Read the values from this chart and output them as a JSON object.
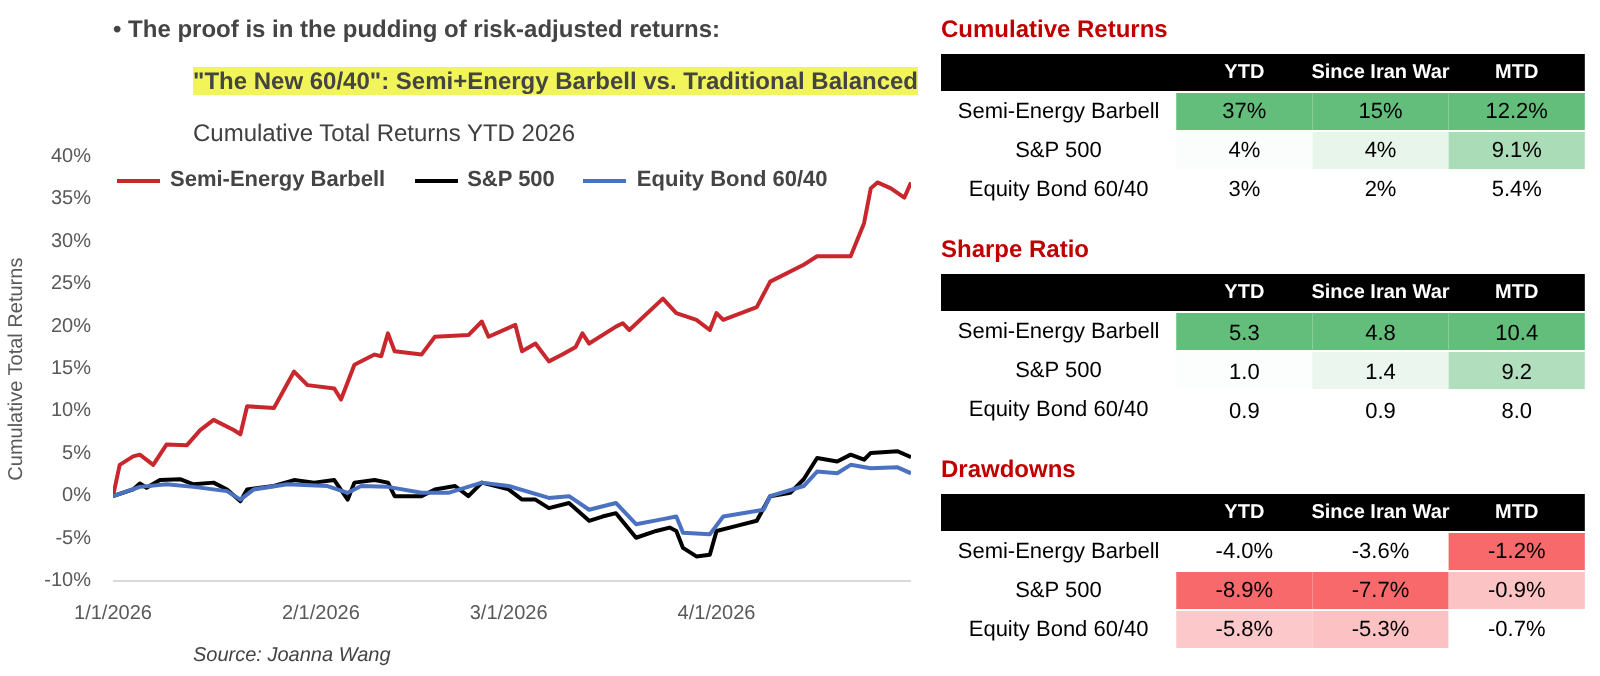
{
  "chart_data": [
    {
      "type": "line",
      "title": "\"The New 60/40\": Semi+Energy Barbell vs. Traditional Balanced",
      "subtitle": "Cumulative Total Returns YTD 2026",
      "ylabel": "Cumulative Total Returns",
      "annotations": [
        "• The proof is in the pudding of risk-adjusted returns:",
        "Source: Joanna Wang"
      ],
      "xlim": [
        "2026-01-01",
        "2026-04-30"
      ],
      "ylim": [
        -10,
        40
      ],
      "xticks": [
        {
          "value": "2026-01-01",
          "label": "1/1/2026"
        },
        {
          "value": "2026-02-01",
          "label": "2/1/2026"
        },
        {
          "value": "2026-03-01",
          "label": "3/1/2026"
        },
        {
          "value": "2026-04-01",
          "label": "4/1/2026"
        }
      ],
      "yticks": [
        {
          "value": -10,
          "label": "-10%"
        },
        {
          "value": -5,
          "label": "-5%"
        },
        {
          "value": 0,
          "label": "0%"
        },
        {
          "value": 5,
          "label": "5%"
        },
        {
          "value": 10,
          "label": "10%"
        },
        {
          "value": 15,
          "label": "15%"
        },
        {
          "value": 20,
          "label": "20%"
        },
        {
          "value": 25,
          "label": "25%"
        },
        {
          "value": 30,
          "label": "30%"
        },
        {
          "value": 35,
          "label": "35%"
        },
        {
          "value": 40,
          "label": "40%"
        }
      ],
      "grid": false,
      "legend": "top left",
      "line_style": "solid",
      "series": [
        {
          "name": "Semi-Energy Barbell",
          "color": "#c8282d",
          "x": [
            "2026-01-01",
            "2026-01-02",
            "2026-01-04",
            "2026-01-05",
            "2026-01-07",
            "2026-01-09",
            "2026-01-12",
            "2026-01-14",
            "2026-01-16",
            "2026-01-19",
            "2026-01-20",
            "2026-01-21",
            "2026-01-25",
            "2026-01-28",
            "2026-01-30",
            "2026-02-03",
            "2026-02-04",
            "2026-02-06",
            "2026-02-09",
            "2026-02-10",
            "2026-02-11",
            "2026-02-12",
            "2026-02-16",
            "2026-02-18",
            "2026-02-23",
            "2026-02-25",
            "2026-02-26",
            "2026-03-02",
            "2026-03-03",
            "2026-03-05",
            "2026-03-07",
            "2026-03-09",
            "2026-03-11",
            "2026-03-12",
            "2026-03-13",
            "2026-03-17",
            "2026-03-18",
            "2026-03-19",
            "2026-03-24",
            "2026-03-26",
            "2026-03-29",
            "2026-03-31",
            "2026-04-01",
            "2026-04-02",
            "2026-04-07",
            "2026-04-09",
            "2026-04-14",
            "2026-04-16",
            "2026-04-21",
            "2026-04-23",
            "2026-04-24",
            "2026-04-25",
            "2026-04-27",
            "2026-04-29",
            "2026-04-30"
          ],
          "values": [
            0,
            3.7,
            4.7,
            4.9,
            3.7,
            6.1,
            6.0,
            7.8,
            9.0,
            7.8,
            7.3,
            10.6,
            10.4,
            14.7,
            13.1,
            12.7,
            11.4,
            15.5,
            16.7,
            16.5,
            19.2,
            17.1,
            16.7,
            18.8,
            19.0,
            20.6,
            18.8,
            20.2,
            17.1,
            18.0,
            15.9,
            16.7,
            17.6,
            19.2,
            18.0,
            20.0,
            20.4,
            19.6,
            23.3,
            21.6,
            20.8,
            19.6,
            21.6,
            20.8,
            22.3,
            25.3,
            27.3,
            28.3,
            28.3,
            32.2,
            36.3,
            37.0,
            36.3,
            35.2,
            37.0
          ]
        },
        {
          "name": "S&P 500",
          "color": "#000000",
          "x": [
            "2026-01-01",
            "2026-01-04",
            "2026-01-05",
            "2026-01-06",
            "2026-01-08",
            "2026-01-11",
            "2026-01-13",
            "2026-01-16",
            "2026-01-18",
            "2026-01-20",
            "2026-01-21",
            "2026-01-25",
            "2026-01-28",
            "2026-01-31",
            "2026-02-03",
            "2026-02-05",
            "2026-02-06",
            "2026-02-09",
            "2026-02-11",
            "2026-02-12",
            "2026-02-16",
            "2026-02-18",
            "2026-02-21",
            "2026-02-23",
            "2026-02-25",
            "2026-03-01",
            "2026-03-03",
            "2026-03-05",
            "2026-03-07",
            "2026-03-10",
            "2026-03-13",
            "2026-03-15",
            "2026-03-17",
            "2026-03-20",
            "2026-03-23",
            "2026-03-25",
            "2026-03-26",
            "2026-03-27",
            "2026-03-29",
            "2026-03-31",
            "2026-04-01",
            "2026-04-04",
            "2026-04-07",
            "2026-04-09",
            "2026-04-12",
            "2026-04-14",
            "2026-04-16",
            "2026-04-19",
            "2026-04-21",
            "2026-04-23",
            "2026-04-24",
            "2026-04-28",
            "2026-04-30"
          ],
          "values": [
            0,
            0.8,
            1.5,
            1.0,
            1.9,
            2.0,
            1.4,
            1.6,
            0.8,
            -0.6,
            0.8,
            1.2,
            1.9,
            1.6,
            1.9,
            -0.4,
            1.6,
            1.9,
            1.6,
            0,
            0,
            0.8,
            1.2,
            0,
            1.6,
            0.8,
            -0.4,
            -0.4,
            -1.4,
            -0.8,
            -2.9,
            -2.4,
            -2.0,
            -4.9,
            -4.1,
            -3.7,
            -4.1,
            -6.1,
            -7.1,
            -6.9,
            -4.1,
            -3.5,
            -2.9,
            0,
            0.4,
            2.0,
            4.5,
            4.1,
            4.9,
            4.3,
            5.1,
            5.3,
            4.6
          ]
        },
        {
          "name": "Equity Bond 60/40",
          "color": "#4a72c0",
          "x": [
            "2026-01-01",
            "2026-01-05",
            "2026-01-09",
            "2026-01-13",
            "2026-01-18",
            "2026-01-20",
            "2026-01-22",
            "2026-01-27",
            "2026-02-02",
            "2026-02-05",
            "2026-02-07",
            "2026-02-11",
            "2026-02-16",
            "2026-02-20",
            "2026-02-25",
            "2026-03-01",
            "2026-03-07",
            "2026-03-10",
            "2026-03-13",
            "2026-03-17",
            "2026-03-20",
            "2026-03-24",
            "2026-03-26",
            "2026-03-27",
            "2026-03-31",
            "2026-04-02",
            "2026-04-08",
            "2026-04-09",
            "2026-04-14",
            "2026-04-16",
            "2026-04-19",
            "2026-04-21",
            "2026-04-24",
            "2026-04-28",
            "2026-04-30"
          ],
          "values": [
            0,
            1.1,
            1.4,
            1.1,
            0.6,
            -0.4,
            0.8,
            1.4,
            1.2,
            0.4,
            1.2,
            1.1,
            0.4,
            0.4,
            1.6,
            1.2,
            -0.2,
            0,
            -1.6,
            -0.8,
            -3.3,
            -2.7,
            -2.4,
            -4.3,
            -4.5,
            -2.4,
            -1.6,
            0,
            1.2,
            2.9,
            2.7,
            3.7,
            3.3,
            3.4,
            2.7
          ]
        }
      ]
    },
    {
      "type": "heatmap",
      "title": "Cumulative Returns",
      "categories": [
        "YTD",
        "Since Iran War",
        "MTD"
      ],
      "y_categories": [
        "Semi-Energy Barbell",
        "S&P 500",
        "Equity Bond 60/40"
      ],
      "cells": [
        [
          37,
          15,
          12.2
        ],
        [
          4,
          4,
          9.1
        ],
        [
          3,
          2,
          5.4
        ]
      ],
      "cell_labels": [
        [
          "37%",
          "15%",
          "12.2%"
        ],
        [
          "4%",
          "4%",
          "9.1%"
        ],
        [
          "3%",
          "2%",
          "5.4%"
        ]
      ]
    },
    {
      "type": "heatmap",
      "title": "Sharpe Ratio",
      "categories": [
        "YTD",
        "Since Iran War",
        "MTD"
      ],
      "y_categories": [
        "Semi-Energy Barbell",
        "S&P 500",
        "Equity Bond 60/40"
      ],
      "cells": [
        [
          5.3,
          4.8,
          10.4
        ],
        [
          1.0,
          1.4,
          9.2
        ],
        [
          0.9,
          0.9,
          8.0
        ]
      ],
      "cell_labels": [
        [
          "5.3",
          "4.8",
          "10.4"
        ],
        [
          "1.0",
          "1.4",
          "9.2"
        ],
        [
          "0.9",
          "0.9",
          "8.0"
        ]
      ]
    },
    {
      "type": "heatmap",
      "title": "Drawdowns",
      "categories": [
        "YTD",
        "Since Iran War",
        "MTD"
      ],
      "y_categories": [
        "Semi-Energy Barbell",
        "S&P 500",
        "Equity Bond 60/40"
      ],
      "cells": [
        [
          -4.0,
          -3.6,
          -1.2
        ],
        [
          -8.9,
          -7.7,
          -0.9
        ],
        [
          -5.8,
          -5.3,
          -0.7
        ]
      ],
      "cell_labels": [
        [
          "-4.0%",
          "-3.6%",
          "-1.2%"
        ],
        [
          "-8.9%",
          "-7.7%",
          "-0.9%"
        ],
        [
          "-5.8%",
          "-5.3%",
          "-0.7%"
        ]
      ]
    }
  ]
}
